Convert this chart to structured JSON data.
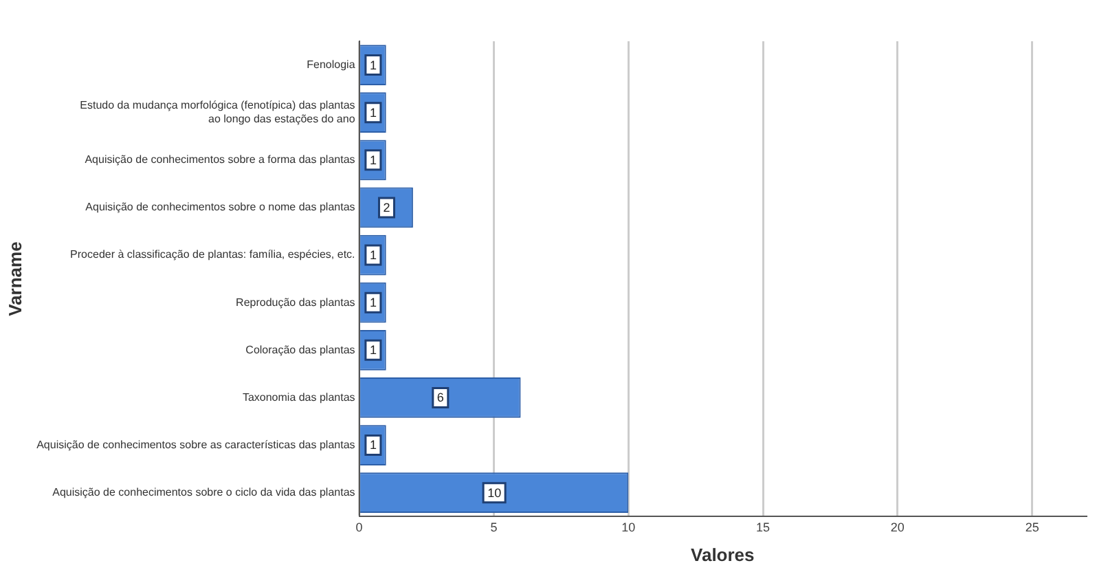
{
  "chart_data": {
    "type": "bar",
    "orientation": "horizontal",
    "xlabel": "Valores",
    "ylabel": "Varname",
    "categories": [
      "Fenologia",
      "Estudo da mudança morfológica (fenotípica) das plantas\nao longo das estações do ano",
      "Aquisição de conhecimentos sobre a forma das plantas",
      "Aquisição de conhecimentos sobre o nome das plantas",
      "Proceder à classificação de plantas: família, espécies, etc.",
      "Reprodução das plantas",
      "Coloração das plantas",
      "Taxonomia das plantas",
      "Aquisição de conhecimentos sobre as características das plantas",
      "Aquisição de conhecimentos sobre o ciclo da vida das plantas"
    ],
    "values": [
      1,
      1,
      1,
      2,
      1,
      1,
      1,
      6,
      1,
      10
    ],
    "color": "#4a86d8",
    "xlim": [
      0,
      27
    ],
    "xticks": [
      0,
      5,
      10,
      15,
      20,
      25
    ],
    "grid": "x",
    "data_labels": true
  }
}
